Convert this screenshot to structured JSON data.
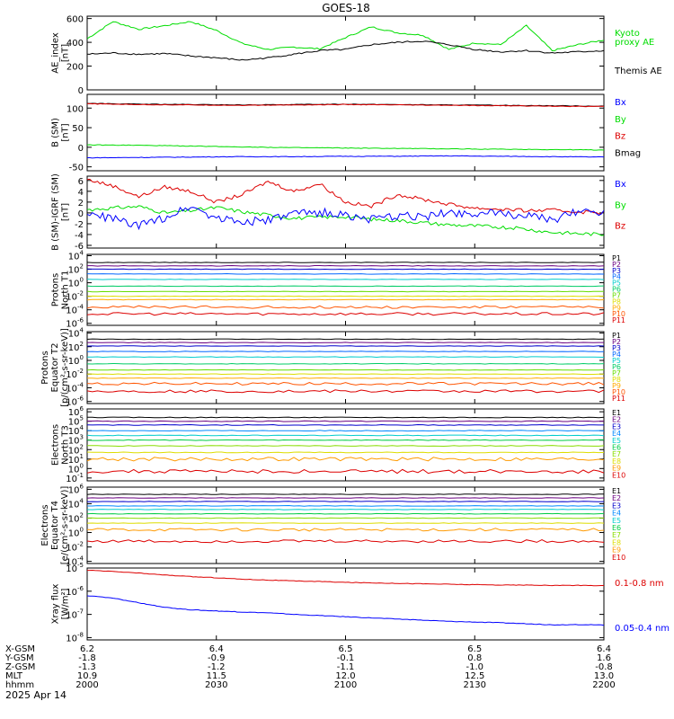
{
  "figure": {
    "title": "GOES-18",
    "date": "2025 Apr 14",
    "hhmm_label": "hhmm"
  },
  "colors": {
    "frame": "#000000",
    "black": "#000000",
    "green": "#00dd00",
    "blue": "#0000ff",
    "red": "#dd0000"
  },
  "chart_data": [
    {
      "id": "ae",
      "type": "line",
      "ylabel": [
        "AE_index",
        "[nT]"
      ],
      "yscale": "linear",
      "ylim": [
        0,
        620
      ],
      "ticks": [
        0,
        200,
        400,
        600
      ],
      "tick_labels": [
        "0",
        "200",
        "400",
        "600"
      ],
      "x": [
        0,
        10,
        20,
        30,
        40,
        50,
        60,
        70,
        80,
        90,
        100,
        110,
        120,
        130,
        140,
        150,
        160,
        170,
        180,
        190,
        200
      ],
      "series": [
        {
          "name": "Kyoto proxy AE",
          "color": "#00dd00",
          "values": [
            430,
            575,
            510,
            540,
            575,
            500,
            390,
            340,
            360,
            345,
            440,
            530,
            480,
            460,
            340,
            395,
            380,
            540,
            330,
            380,
            420
          ]
        },
        {
          "name": "Themis AE",
          "color": "#000000",
          "values": [
            300,
            310,
            300,
            305,
            285,
            270,
            250,
            270,
            300,
            330,
            340,
            380,
            400,
            410,
            380,
            340,
            320,
            330,
            310,
            320,
            330
          ]
        }
      ],
      "legend": [
        {
          "text": "Kyoto",
          "color": "#00dd00"
        },
        {
          "text": "proxy AE",
          "color": "#00dd00"
        },
        {
          "text": "Themis AE",
          "color": "#000000"
        }
      ]
    },
    {
      "id": "bsm",
      "type": "line",
      "ylabel": [
        "B (SM)",
        "[nT]"
      ],
      "yscale": "linear",
      "ylim": [
        -60,
        135
      ],
      "ticks": [
        -50,
        0,
        50,
        100
      ],
      "tick_labels": [
        "-50",
        "0",
        "50",
        "100"
      ],
      "x": [
        0,
        20,
        40,
        60,
        80,
        100,
        120,
        140,
        160,
        180,
        200
      ],
      "series": [
        {
          "name": "Bmag",
          "color": "#000000",
          "values": [
            112,
            110,
            109,
            108,
            109,
            110,
            109,
            108,
            107,
            106,
            105
          ]
        },
        {
          "name": "Bz",
          "color": "#dd0000",
          "values": [
            111,
            109,
            108,
            107,
            108,
            109,
            108,
            107,
            106,
            105,
            104
          ]
        },
        {
          "name": "By",
          "color": "#00dd00",
          "values": [
            6,
            5,
            3,
            1,
            -1,
            -2,
            -3,
            -4,
            -5,
            -6,
            -7
          ]
        },
        {
          "name": "Bx",
          "color": "#0000ff",
          "values": [
            -27,
            -26,
            -25,
            -24,
            -24,
            -23,
            -23,
            -22,
            -23,
            -24,
            -25
          ]
        }
      ],
      "legend": [
        {
          "text": "Bx",
          "color": "#0000ff"
        },
        {
          "text": "By",
          "color": "#00dd00"
        },
        {
          "text": "Bz",
          "color": "#dd0000"
        },
        {
          "text": "Bmag",
          "color": "#000000"
        }
      ]
    },
    {
      "id": "bigrf",
      "type": "line",
      "ylabel": [
        "B (SM)-IGRF (SM)",
        "[nT]"
      ],
      "yscale": "linear",
      "ylim": [
        -6.5,
        6.8
      ],
      "ticks": [
        -6,
        -4,
        -2,
        0,
        2,
        4,
        6
      ],
      "tick_labels": [
        "-6",
        "-4",
        "-2",
        "0",
        "2",
        "4",
        "6"
      ],
      "x": [
        0,
        10,
        20,
        30,
        40,
        50,
        60,
        70,
        80,
        90,
        100,
        110,
        120,
        130,
        140,
        150,
        160,
        170,
        180,
        190,
        200
      ],
      "series": [
        {
          "name": "Bz",
          "color": "#dd0000",
          "values": [
            6.2,
            5.0,
            3.0,
            4.8,
            4.0,
            2.0,
            3.4,
            5.8,
            4.0,
            5.4,
            2.0,
            1.2,
            3.4,
            2.5,
            1.6,
            0.9,
            0.7,
            0.4,
            0.5,
            0.2,
            0.1
          ]
        },
        {
          "name": "By",
          "color": "#00dd00",
          "values": [
            0.6,
            0.9,
            1.2,
            0.0,
            0.4,
            1.0,
            0.2,
            -0.4,
            -1.0,
            -0.8,
            -0.7,
            -1.2,
            -1.4,
            -1.8,
            -2.2,
            -2.4,
            -2.6,
            -3.0,
            -3.6,
            -3.8,
            -4.0
          ]
        },
        {
          "name": "Bx",
          "color": "#0000ff",
          "values": [
            -0.3,
            -1.0,
            -2.5,
            -0.8,
            1.3,
            -0.9,
            -1.6,
            -1.4,
            -0.2,
            0.1,
            -0.4,
            -1.3,
            -0.6,
            -0.7,
            0.1,
            0.0,
            -0.2,
            -0.4,
            -1.5,
            0.5,
            0.2
          ]
        }
      ],
      "legend": [
        {
          "text": "Bx",
          "color": "#0000ff"
        },
        {
          "text": "By",
          "color": "#00dd00"
        },
        {
          "text": "Bz",
          "color": "#dd0000"
        }
      ]
    },
    {
      "id": "protons_t1",
      "type": "line",
      "ylabel": [
        "Protons",
        "North T1"
      ],
      "yscale": "log",
      "ylim": [
        -6.3,
        4.2
      ],
      "ticks": [
        -6,
        -4,
        -2,
        0,
        2,
        4
      ],
      "tick_labels": [
        "6",
        "4",
        "2",
        "0",
        "2",
        "4"
      ],
      "tick_negative": [
        true,
        true,
        true,
        false,
        false,
        false
      ],
      "levels": [
        3.0,
        2.5,
        2.0,
        1.3,
        0.5,
        -0.5,
        -1.3,
        -2.0,
        -2.5,
        -3.6,
        -4.6
      ],
      "series_names": [
        "P1",
        "P2",
        "P3",
        "P4",
        "P5",
        "P6",
        "P7",
        "P8",
        "P9",
        "P10",
        "P11"
      ],
      "series_colors": [
        "#000000",
        "#6a0080",
        "#0000cc",
        "#0066ff",
        "#00cccc",
        "#00cc66",
        "#66dd00",
        "#dddd00",
        "#ffaa00",
        "#ff5500",
        "#dd0000"
      ]
    },
    {
      "id": "protons_t2",
      "type": "line",
      "ylabel": [
        "Protons",
        "Equator T2",
        "[p/(cm²-s-sr-keV)]"
      ],
      "yscale": "log",
      "ylim": [
        -6.3,
        4.2
      ],
      "ticks": [
        -6,
        -4,
        -2,
        0,
        2,
        4
      ],
      "tick_labels": [
        "6",
        "4",
        "2",
        "0",
        "2",
        "4"
      ],
      "tick_negative": [
        true,
        true,
        true,
        false,
        false,
        false
      ],
      "levels": [
        3.1,
        2.6,
        2.1,
        1.3,
        0.5,
        -0.5,
        -1.4,
        -2.0,
        -2.6,
        -3.4,
        -4.5
      ],
      "series_names": [
        "P1",
        "P2",
        "P3",
        "P4",
        "P5",
        "P6",
        "P7",
        "P8",
        "P9",
        "P10",
        "P11"
      ],
      "series_colors": [
        "#000000",
        "#6a0080",
        "#0000cc",
        "#0066ff",
        "#00cccc",
        "#00cc66",
        "#66dd00",
        "#dddd00",
        "#ffaa00",
        "#ff5500",
        "#dd0000"
      ]
    },
    {
      "id": "electrons_t3",
      "type": "line",
      "ylabel": [
        "Electrons",
        "North T3"
      ],
      "yscale": "log",
      "ylim": [
        -1.3,
        6.3
      ],
      "ticks": [
        -1,
        0,
        1,
        2,
        3,
        4,
        5,
        6
      ],
      "tick_labels": [
        "1",
        "0",
        "1",
        "2",
        "3",
        "4",
        "5",
        "6"
      ],
      "tick_negative": [
        true,
        false,
        false,
        false,
        false,
        false,
        false,
        false
      ],
      "levels": [
        5.4,
        5.0,
        4.6,
        4.0,
        3.5,
        3.0,
        2.4,
        1.7,
        1.0,
        -0.3
      ],
      "series_names": [
        "E1",
        "E2",
        "E3",
        "E4",
        "E5",
        "E6",
        "E7",
        "E8",
        "E9",
        "E10"
      ],
      "series_colors": [
        "#000000",
        "#6a0080",
        "#0000cc",
        "#0088ff",
        "#00cccc",
        "#00cc44",
        "#88dd00",
        "#dddd00",
        "#ff9900",
        "#dd0000"
      ]
    },
    {
      "id": "electrons_t4",
      "type": "line",
      "ylabel": [
        "Electrons",
        "Equator T4",
        "[e/(cm²-s-sr-keV)]"
      ],
      "yscale": "log",
      "ylim": [
        -4.3,
        6.3
      ],
      "ticks": [
        -4,
        -2,
        0,
        2,
        4,
        6
      ],
      "tick_labels": [
        "4",
        "2",
        "0",
        "2",
        "4",
        "6"
      ],
      "tick_negative": [
        true,
        true,
        false,
        false,
        false,
        false
      ],
      "levels": [
        5.3,
        4.8,
        4.3,
        3.7,
        3.2,
        2.6,
        2.0,
        1.3,
        0.4,
        -1.2
      ],
      "series_names": [
        "E1",
        "E2",
        "E3",
        "E4",
        "E5",
        "E6",
        "E7",
        "E8",
        "E9",
        "E10"
      ],
      "series_colors": [
        "#000000",
        "#6a0080",
        "#0000cc",
        "#0088ff",
        "#00cccc",
        "#00cc44",
        "#88dd00",
        "#dddd00",
        "#ff9900",
        "#dd0000"
      ]
    },
    {
      "id": "xray",
      "type": "line",
      "ylabel": [
        "Xray flux",
        "[W/m²]"
      ],
      "yscale": "log",
      "ylim": [
        -8.1,
        -5.0
      ],
      "ticks": [
        -8,
        -7,
        -6,
        -5
      ],
      "tick_labels": [
        "8",
        "7",
        "6",
        "5"
      ],
      "tick_negative": [
        true,
        true,
        true,
        true
      ],
      "x": [
        0,
        10,
        20,
        30,
        40,
        50,
        60,
        70,
        80,
        90,
        100,
        110,
        120,
        130,
        140,
        150,
        160,
        170,
        180,
        190,
        200
      ],
      "series": [
        {
          "name": "0.1-0.8 nm",
          "color": "#dd0000",
          "values": [
            -5.1,
            -5.15,
            -5.22,
            -5.3,
            -5.37,
            -5.42,
            -5.48,
            -5.52,
            -5.56,
            -5.58,
            -5.62,
            -5.64,
            -5.66,
            -5.68,
            -5.7,
            -5.72,
            -5.73,
            -5.74,
            -5.75,
            -5.75,
            -5.76
          ]
        },
        {
          "name": "0.05-0.4 nm",
          "color": "#0000ff",
          "values": [
            -6.2,
            -6.3,
            -6.5,
            -6.7,
            -6.8,
            -6.85,
            -6.9,
            -6.93,
            -7.0,
            -7.05,
            -7.1,
            -7.15,
            -7.2,
            -7.25,
            -7.3,
            -7.33,
            -7.36,
            -7.4,
            -7.45,
            -7.44,
            -7.46
          ]
        }
      ],
      "legend": [
        {
          "text": "0.1-0.8 nm",
          "color": "#dd0000"
        },
        {
          "text": "0.05-0.4 nm",
          "color": "#0000ff"
        }
      ]
    }
  ],
  "x_axis": {
    "xlim": [
      0,
      200
    ],
    "tick_positions": [
      0,
      50,
      100,
      150,
      200
    ],
    "row_labels": [
      "X-GSM",
      "Y-GSM",
      "Z-GSM",
      "MLT",
      "hhmm"
    ],
    "rows": [
      [
        "6.2",
        "6.4",
        "6.5",
        "6.5",
        "6.4"
      ],
      [
        "-1.8",
        "-0.9",
        "-0.1",
        "0.8",
        "1.6"
      ],
      [
        "-1.3",
        "-1.2",
        "-1.1",
        "-1.0",
        "-0.8"
      ],
      [
        "10.9",
        "11.5",
        "12.0",
        "12.5",
        "13.0"
      ],
      [
        "2000",
        "2030",
        "2100",
        "2130",
        "2200"
      ]
    ]
  }
}
